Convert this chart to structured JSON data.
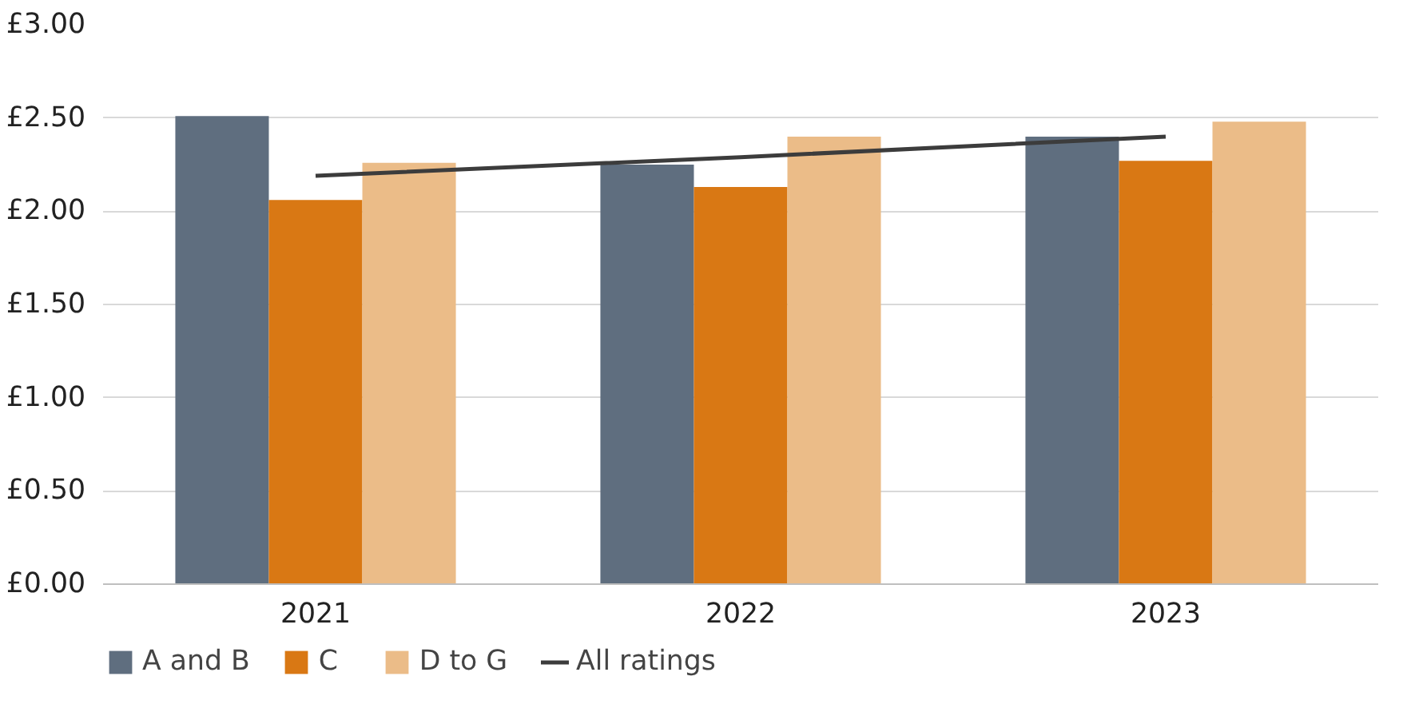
{
  "chart_data": {
    "type": "bar",
    "categories": [
      "2021",
      "2022",
      "2023"
    ],
    "series": [
      {
        "name": "A and B",
        "color": "#5f6e7f",
        "values": [
          2.51,
          2.25,
          2.4
        ]
      },
      {
        "name": "C",
        "color": "#d97814",
        "values": [
          2.06,
          2.13,
          2.27
        ]
      },
      {
        "name": "D to G",
        "color": "#ebbc88",
        "values": [
          2.26,
          2.4,
          2.48
        ]
      },
      {
        "name": "All ratings",
        "type": "line",
        "color": "#3c3c3c",
        "values": [
          2.19,
          2.29,
          2.4
        ],
        "marker": "none"
      }
    ],
    "ylim": [
      0,
      3
    ],
    "yticks": [
      {
        "value": 0,
        "label": "£0.00"
      },
      {
        "value": 0.5,
        "label": "£0.50"
      },
      {
        "value": 1,
        "label": "£1.00"
      },
      {
        "value": 1.5,
        "label": "£1.50"
      },
      {
        "value": 2,
        "label": "£2.00"
      },
      {
        "value": 2.5,
        "label": "£2.50"
      },
      {
        "value": 3,
        "label": "£3.00"
      }
    ],
    "grid": "y",
    "legend": "bottom left"
  }
}
